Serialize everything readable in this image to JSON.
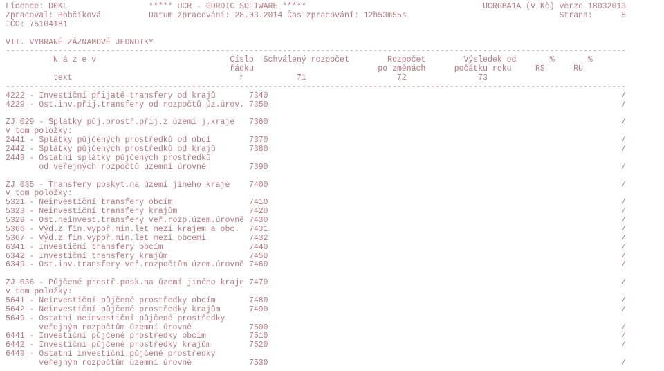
{
  "colors": {
    "text": "#b4787e",
    "background": "#ffffff"
  },
  "font": {
    "family": "Courier New",
    "size_pt": 8.5,
    "line_height": 1.12
  },
  "header": {
    "l1_left": "Licence: D0KL",
    "l1_center": "***** UCR - GORDIC SOFTWARE *****",
    "l1_right": "UCRGBA1A (v Kč) verze 18032013",
    "l2_left": "Zpracoval: Bobčíková",
    "l2_center": "Datum zpracování: 28.03.2014 Čas zpracování: 12h53m55s",
    "l2_right": "Strana:      8",
    "l3_left": "IČO: 75104181"
  },
  "section_title": "VII. VYBRANÉ ZÁZNAMOVÉ JEDNOTKY",
  "col_header": {
    "r1": "          N á z e v                            Číslo  Schválený rozpočet        Rozpočet        Výsledek od       %       %",
    "r2": "                                               řádku                          po změnách      počátku roku     RS      RU",
    "r3": "          text                                   r           71                   72               73"
  },
  "rows": [
    {
      "text": "4222 - Investiční přijaté transfery od krajů",
      "num": "7340",
      "tail": "/"
    },
    {
      "text": "4229 - Ost.inv.přij.transfery od rozpočtů úz.úrov.",
      "num": "7350",
      "tail": "/"
    },
    {
      "text": "",
      "num": "",
      "tail": ""
    },
    {
      "text": "ZJ 029 - Splátky půj.prostř.přij.z území j.kraje",
      "num": "7360",
      "tail": "/"
    },
    {
      "text": "v tom položky:",
      "num": "",
      "tail": ""
    },
    {
      "text": "2441 - Splátky půjčených prostředků od obcí",
      "num": "7370",
      "tail": "/"
    },
    {
      "text": "2442 - Splátky půjčených prostředků od krajů",
      "num": "7380",
      "tail": "/"
    },
    {
      "text": "2449 - Ostatní splátky půjčených prostředků",
      "num": "",
      "tail": ""
    },
    {
      "text": "       od veřejných rozpočtů územní úrovně",
      "num": "7390",
      "tail": "/"
    },
    {
      "text": "",
      "num": "",
      "tail": ""
    },
    {
      "text": "ZJ 035 - Transfery poskyt.na území jiného kraje",
      "num": "7400",
      "tail": "/"
    },
    {
      "text": "v tom položky:",
      "num": "",
      "tail": ""
    },
    {
      "text": "5321 - Neinvestiční transfery obcím",
      "num": "7410",
      "tail": "/"
    },
    {
      "text": "5323 - Neinvestiční transfery krajům",
      "num": "7420",
      "tail": "/"
    },
    {
      "text": "5329 - Ost.neinvest.transfery veř.rozp.územ.úrovně",
      "num": "7430",
      "tail": "/"
    },
    {
      "text": "5366 - Výd.z fin.vypoř.min.let mezi krajem a obc.",
      "num": "7431",
      "tail": "/"
    },
    {
      "text": "5367 - Výd.z fin.vypoř.min.let mezi obcemi",
      "num": "7432",
      "tail": "/"
    },
    {
      "text": "6341 - Investiční transfery obcím",
      "num": "7440",
      "tail": "/"
    },
    {
      "text": "6342 - Investiční transfery krajům",
      "num": "7450",
      "tail": "/"
    },
    {
      "text": "6349 - Ost.inv.transfery veř.rozpočtům územ.úrovně",
      "num": "7460",
      "tail": "/"
    },
    {
      "text": "",
      "num": "",
      "tail": ""
    },
    {
      "text": "ZJ 036 - Půjčené prostř.posk.na území jiného kraje",
      "num": "7470",
      "tail": "/"
    },
    {
      "text": "v tom položky:",
      "num": "",
      "tail": ""
    },
    {
      "text": "5641 - Neinvestiční půjčené prostředky obcím",
      "num": "7480",
      "tail": "/"
    },
    {
      "text": "5642 - Neinvestiční půjčené prostředky krajům",
      "num": "7490",
      "tail": "/"
    },
    {
      "text": "5649 - Ostatní neinvestiční půjčené prostředky",
      "num": "",
      "tail": ""
    },
    {
      "text": "       veřejným rozpočtům územní úrovně",
      "num": "7500",
      "tail": "/"
    },
    {
      "text": "6441 - Investiční půjčené prostředky obcím",
      "num": "7510",
      "tail": "/"
    },
    {
      "text": "6442 - Investiční půjčené prostředky krajům",
      "num": "7520",
      "tail": "/"
    },
    {
      "text": "6449 - Ostatní investiční půjčené prostředky",
      "num": "",
      "tail": ""
    },
    {
      "text": "       veřejným rozpočtům územní úrovně",
      "num": "7530",
      "tail": "/"
    }
  ],
  "layout": {
    "total_width_chars": 130,
    "text_col_width": 51,
    "num_col_width": 4,
    "tail_pad": 74
  }
}
